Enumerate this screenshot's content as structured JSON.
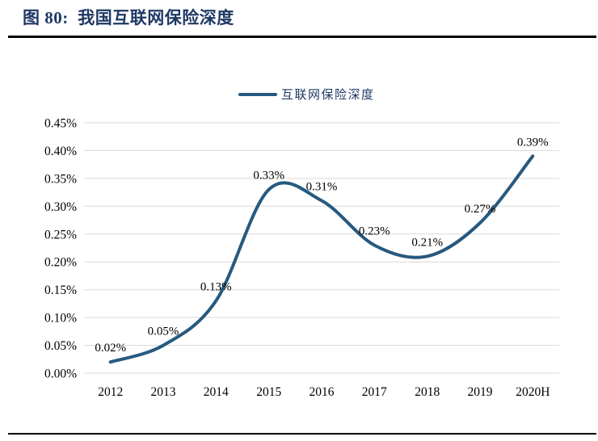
{
  "header": {
    "title": "图 80:  我国互联网保险深度"
  },
  "chart_data": {
    "type": "line",
    "title": "图 80: 我国互联网保险深度",
    "legend_position": "top",
    "grid": true,
    "smooth": true,
    "categories": [
      "2012",
      "2013",
      "2014",
      "2015",
      "2016",
      "2017",
      "2018",
      "2019",
      "2020H"
    ],
    "series": [
      {
        "name": "互联网保险深度",
        "values": [
          0.02,
          0.05,
          0.13,
          0.33,
          0.31,
          0.23,
          0.21,
          0.27,
          0.39
        ]
      }
    ],
    "data_labels": [
      "0.02%",
      "0.05%",
      "0.13%",
      "0.33%",
      "0.31%",
      "0.23%",
      "0.21%",
      "0.27%",
      "0.39%"
    ],
    "y_ticks": [
      "0.45%",
      "0.40%",
      "0.35%",
      "0.30%",
      "0.25%",
      "0.20%",
      "0.15%",
      "0.10%",
      "0.05%",
      "0.00%"
    ],
    "ylim": [
      0,
      0.45
    ],
    "y_step": 0.05,
    "unit": "%",
    "colors": {
      "line": "#26597F",
      "grid": "#D9D9D9",
      "title": "#1F3864",
      "legend_text": "#1F3864",
      "axis_text": "#000000",
      "rule": "#000000"
    }
  }
}
